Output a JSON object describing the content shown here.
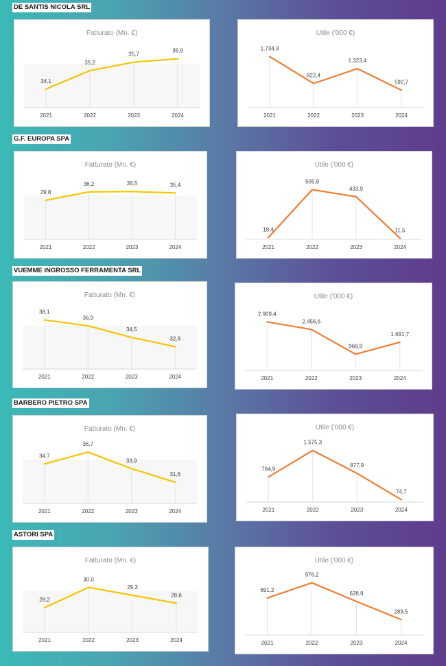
{
  "colors": {
    "revenue": "#f5c400",
    "profit": "#ed7d31"
  },
  "companies": [
    {
      "name": "DE SANTIS NICOLA SRL",
      "revenue": {
        "title": "Fatturato  (Mn. €)",
        "years": [
          "2021",
          "2022",
          "2023",
          "2024"
        ],
        "values": [
          34.1,
          35.2,
          35.7,
          35.9
        ],
        "labels": [
          "34,1",
          "35,2",
          "35,7",
          "35,9"
        ],
        "ylim": [
          33,
          36.5
        ]
      },
      "profit": {
        "title": "Utile ('000 €)",
        "years": [
          "2021",
          "2022",
          "2023",
          "2024"
        ],
        "values": [
          1734.3,
          822.4,
          1323.4,
          592.7
        ],
        "labels": [
          "1.734,3",
          "822,4",
          "1.323,4",
          "592,7"
        ],
        "ylim": [
          0,
          2000
        ]
      }
    },
    {
      "name": "G.F. EUROPA SPA",
      "revenue": {
        "title": "Fatturato  (Mn. €)",
        "years": [
          "2021",
          "2022",
          "2023",
          "2024"
        ],
        "values": [
          29.8,
          36.2,
          36.5,
          35.4
        ],
        "labels": [
          "29,8",
          "36,2",
          "36,5",
          "35,4"
        ],
        "ylim": [
          0,
          45
        ]
      },
      "profit": {
        "title": "Utile ('000 €)",
        "years": [
          "2021",
          "2022",
          "2023",
          "2024"
        ],
        "values": [
          18.4,
          505.9,
          433.9,
          11.5
        ],
        "labels": [
          "18,4",
          "505,9",
          "433,9",
          "11,5"
        ],
        "ylim": [
          0,
          600
        ]
      }
    },
    {
      "name": "VUEMME INGROSSO FERRAMENTA SRL",
      "revenue": {
        "title": "Fatturato  (Mn. €)",
        "years": [
          "2021",
          "2022",
          "2023",
          "2024"
        ],
        "values": [
          38.1,
          36.9,
          34.5,
          32.6
        ],
        "labels": [
          "38,1",
          "36,9",
          "34,5",
          "32,6"
        ],
        "ylim": [
          28,
          40
        ]
      },
      "profit": {
        "title": "Utile ('000 €)",
        "years": [
          "2021",
          "2022",
          "2023",
          "2024"
        ],
        "values": [
          2909.4,
          2456.6,
          968.9,
          1691.7
        ],
        "labels": [
          "2.909,4",
          "2.456,6",
          "968,9",
          "1.691,7"
        ],
        "ylim": [
          0,
          3500
        ]
      }
    },
    {
      "name": "BARBERO PIETRO SPA",
      "revenue": {
        "title": "Fatturato  (Mn. €)",
        "years": [
          "2021",
          "2022",
          "2023",
          "2024"
        ],
        "values": [
          34.7,
          36.7,
          33.9,
          31.6
        ],
        "labels": [
          "34,7",
          "36,7",
          "33,9",
          "31,6"
        ],
        "ylim": [
          28,
          38
        ]
      },
      "profit": {
        "title": "Utile ('000 €)",
        "years": [
          "2021",
          "2022",
          "2023",
          "2024"
        ],
        "values": [
          764.9,
          1575.3,
          877.9,
          74.7
        ],
        "labels": [
          "764,9",
          "1.575,3",
          "877,9",
          "74,7"
        ],
        "ylim": [
          0,
          1800
        ]
      }
    },
    {
      "name": "ASTORI SPA",
      "revenue": {
        "title": "Fatturato  (Mn. €)",
        "years": [
          "2021",
          "2022",
          "2023",
          "2024"
        ],
        "values": [
          28.2,
          30.0,
          29.3,
          28.6
        ],
        "labels": [
          "28,2",
          "30,0",
          "29,3",
          "28,6"
        ],
        "ylim": [
          26,
          31
        ]
      },
      "profit": {
        "title": "Utile ('000 €)",
        "years": [
          "2021",
          "2022",
          "2023",
          "2024"
        ],
        "values": [
          691.2,
          976.2,
          628.9,
          289.5
        ],
        "labels": [
          "691,2",
          "976,2",
          "628,9",
          "289,5"
        ],
        "ylim": [
          0,
          1100
        ]
      }
    }
  ],
  "chart_data": [
    {
      "type": "line",
      "company": "DE SANTIS NICOLA SRL",
      "title": "Fatturato  (Mn. €)",
      "categories": [
        "2021",
        "2022",
        "2023",
        "2024"
      ],
      "values": [
        34.1,
        35.2,
        35.7,
        35.9
      ]
    },
    {
      "type": "line",
      "company": "DE SANTIS NICOLA SRL",
      "title": "Utile ('000 €)",
      "categories": [
        "2021",
        "2022",
        "2023",
        "2024"
      ],
      "values": [
        1734.3,
        822.4,
        1323.4,
        592.7
      ]
    },
    {
      "type": "line",
      "company": "G.F. EUROPA SPA",
      "title": "Fatturato  (Mn. €)",
      "categories": [
        "2021",
        "2022",
        "2023",
        "2024"
      ],
      "values": [
        29.8,
        36.2,
        36.5,
        35.4
      ]
    },
    {
      "type": "line",
      "company": "G.F. EUROPA SPA",
      "title": "Utile ('000 €)",
      "categories": [
        "2021",
        "2022",
        "2023",
        "2024"
      ],
      "values": [
        18.4,
        505.9,
        433.9,
        11.5
      ]
    },
    {
      "type": "line",
      "company": "VUEMME INGROSSO FERRAMENTA SRL",
      "title": "Fatturato  (Mn. €)",
      "categories": [
        "2021",
        "2022",
        "2023",
        "2024"
      ],
      "values": [
        38.1,
        36.9,
        34.5,
        32.6
      ]
    },
    {
      "type": "line",
      "company": "VUEMME INGROSSO FERRAMENTA SRL",
      "title": "Utile ('000 €)",
      "categories": [
        "2021",
        "2022",
        "2023",
        "2024"
      ],
      "values": [
        2909.4,
        2456.6,
        968.9,
        1691.7
      ]
    },
    {
      "type": "line",
      "company": "BARBERO PIETRO SPA",
      "title": "Fatturato  (Mn. €)",
      "categories": [
        "2021",
        "2022",
        "2023",
        "2024"
      ],
      "values": [
        34.7,
        36.7,
        33.9,
        31.6
      ]
    },
    {
      "type": "line",
      "company": "BARBERO PIETRO SPA",
      "title": "Utile ('000 €)",
      "categories": [
        "2021",
        "2022",
        "2023",
        "2024"
      ],
      "values": [
        764.9,
        1575.3,
        877.9,
        74.7
      ]
    },
    {
      "type": "line",
      "company": "ASTORI SPA",
      "title": "Fatturato  (Mn. €)",
      "categories": [
        "2021",
        "2022",
        "2023",
        "2024"
      ],
      "values": [
        28.2,
        30.0,
        29.3,
        28.6
      ]
    },
    {
      "type": "line",
      "company": "ASTORI SPA",
      "title": "Utile ('000 €)",
      "categories": [
        "2021",
        "2022",
        "2023",
        "2024"
      ],
      "values": [
        691.2,
        976.2,
        628.9,
        289.5
      ]
    }
  ]
}
